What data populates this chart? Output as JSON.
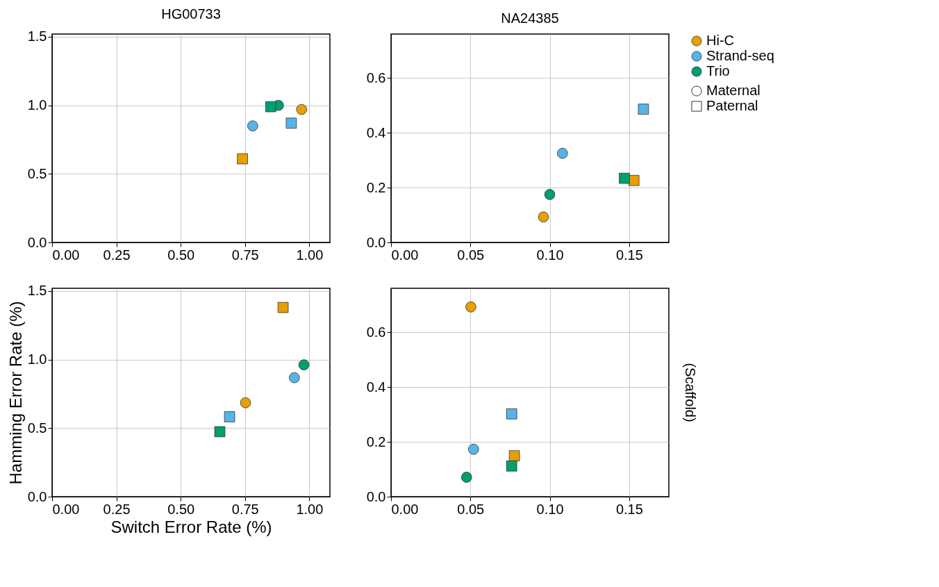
{
  "chart_data": [
    {
      "type": "scatter",
      "title": "HG00733",
      "xlim": [
        0,
        1.08
      ],
      "ylim": [
        0,
        1.52
      ],
      "xticks": [
        {
          "value": 0,
          "label": "0.00"
        },
        {
          "value": 0.25,
          "label": "0.25"
        },
        {
          "value": 0.5,
          "label": "0.50"
        },
        {
          "value": 0.75,
          "label": "0.75"
        },
        {
          "value": 1,
          "label": "1.00"
        }
      ],
      "yticks": [
        {
          "value": 0,
          "label": "0.0"
        },
        {
          "value": 0.5,
          "label": "0.5"
        },
        {
          "value": 1,
          "label": "1.0"
        },
        {
          "value": 1.5,
          "label": "1.5"
        }
      ],
      "grid": true,
      "series": [
        {
          "marker": "circle",
          "color": "#e69f00",
          "x": [
            0.97
          ],
          "values": [
            0.97
          ]
        },
        {
          "marker": "circle",
          "color": "#56b4e9",
          "x": [
            0.78
          ],
          "values": [
            0.85
          ]
        },
        {
          "marker": "circle",
          "color": "#009e73",
          "x": [
            0.88
          ],
          "values": [
            1.0
          ]
        },
        {
          "marker": "square",
          "color": "#e69f00",
          "x": [
            0.74
          ],
          "values": [
            0.61
          ]
        },
        {
          "marker": "square",
          "color": "#56b4e9",
          "x": [
            0.93
          ],
          "values": [
            0.87
          ]
        },
        {
          "marker": "square",
          "color": "#009e73",
          "x": [
            0.85
          ],
          "values": [
            0.99
          ]
        }
      ]
    },
    {
      "type": "scatter",
      "title": "NA24385",
      "xlim": [
        0,
        0.175
      ],
      "ylim": [
        0,
        0.76
      ],
      "xticks": [
        {
          "value": 0,
          "label": "0.00"
        },
        {
          "value": 0.05,
          "label": "0.05"
        },
        {
          "value": 0.1,
          "label": "0.10"
        },
        {
          "value": 0.15,
          "label": "0.15"
        }
      ],
      "yticks": [
        {
          "value": 0,
          "label": "0.0"
        },
        {
          "value": 0.2,
          "label": "0.2"
        },
        {
          "value": 0.4,
          "label": "0.4"
        },
        {
          "value": 0.6,
          "label": "0.6"
        }
      ],
      "grid": true,
      "legend": "right",
      "series": [
        {
          "name": "Hi-C",
          "marker": "circle",
          "color": "#e69f00",
          "x": [
            0.096
          ],
          "values": [
            0.093
          ]
        },
        {
          "name": "Strand-seq",
          "marker": "circle",
          "color": "#56b4e9",
          "x": [
            0.108
          ],
          "values": [
            0.325
          ]
        },
        {
          "name": "Trio",
          "marker": "circle",
          "color": "#009e73",
          "x": [
            0.1
          ],
          "values": [
            0.175
          ]
        },
        {
          "marker": "square",
          "color": "#e69f00",
          "x": [
            0.153
          ],
          "values": [
            0.226
          ]
        },
        {
          "marker": "square",
          "color": "#56b4e9",
          "x": [
            0.159
          ],
          "values": [
            0.486
          ]
        },
        {
          "marker": "square",
          "color": "#009e73",
          "x": [
            0.147
          ],
          "values": [
            0.234
          ]
        },
        {
          "name": "Maternal",
          "marker": "circle",
          "color": "#333333"
        },
        {
          "name": "Paternal",
          "marker": "square",
          "color": "#333333"
        }
      ]
    },
    {
      "type": "scatter",
      "xlabel": "Switch Error Rate (%)",
      "ylabel": "Hamming Error Rate (%)",
      "xlim": [
        0,
        1.08
      ],
      "ylim": [
        0,
        1.52
      ],
      "xticks": [
        {
          "value": 0,
          "label": "0.00"
        },
        {
          "value": 0.25,
          "label": "0.25"
        },
        {
          "value": 0.5,
          "label": "0.50"
        },
        {
          "value": 0.75,
          "label": "0.75"
        },
        {
          "value": 1,
          "label": "1.00"
        }
      ],
      "yticks": [
        {
          "value": 0,
          "label": "0.0"
        },
        {
          "value": 0.5,
          "label": "0.5"
        },
        {
          "value": 1,
          "label": "1.0"
        },
        {
          "value": 1.5,
          "label": "1.5"
        }
      ],
      "grid": true,
      "series": [
        {
          "marker": "circle",
          "color": "#e69f00",
          "x": [
            0.752
          ],
          "values": [
            0.685
          ]
        },
        {
          "marker": "circle",
          "color": "#56b4e9",
          "x": [
            0.942
          ],
          "values": [
            0.868
          ]
        },
        {
          "marker": "circle",
          "color": "#009e73",
          "x": [
            0.979
          ],
          "values": [
            0.962
          ]
        },
        {
          "marker": "square",
          "color": "#e69f00",
          "x": [
            0.898
          ],
          "values": [
            1.38
          ]
        },
        {
          "marker": "square",
          "color": "#56b4e9",
          "x": [
            0.69
          ],
          "values": [
            0.583
          ]
        },
        {
          "marker": "square",
          "color": "#009e73",
          "x": [
            0.652
          ],
          "values": [
            0.474
          ]
        }
      ]
    },
    {
      "type": "scatter",
      "y2label": "(Scaffold)",
      "xlim": [
        0,
        0.175
      ],
      "ylim": [
        0,
        0.76
      ],
      "xticks": [
        {
          "value": 0,
          "label": "0.00"
        },
        {
          "value": 0.05,
          "label": "0.05"
        },
        {
          "value": 0.1,
          "label": "0.10"
        },
        {
          "value": 0.15,
          "label": "0.15"
        }
      ],
      "yticks": [
        {
          "value": 0,
          "label": "0.0"
        },
        {
          "value": 0.2,
          "label": "0.2"
        },
        {
          "value": 0.4,
          "label": "0.4"
        },
        {
          "value": 0.6,
          "label": "0.6"
        }
      ],
      "grid": true,
      "series": [
        {
          "marker": "circle",
          "color": "#e69f00",
          "x": [
            0.0503
          ],
          "values": [
            0.692
          ]
        },
        {
          "marker": "circle",
          "color": "#56b4e9",
          "x": [
            0.052
          ],
          "values": [
            0.173
          ]
        },
        {
          "marker": "circle",
          "color": "#009e73",
          "x": [
            0.0476
          ],
          "values": [
            0.071
          ]
        },
        {
          "marker": "square",
          "color": "#e69f00",
          "x": [
            0.0777
          ],
          "values": [
            0.149
          ]
        },
        {
          "marker": "square",
          "color": "#56b4e9",
          "x": [
            0.076
          ],
          "values": [
            0.302
          ]
        },
        {
          "marker": "square",
          "color": "#009e73",
          "x": [
            0.076
          ],
          "values": [
            0.112
          ]
        }
      ]
    }
  ]
}
